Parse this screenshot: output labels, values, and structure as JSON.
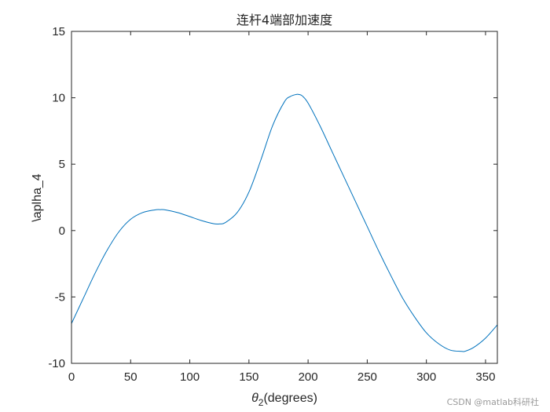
{
  "chart_data": {
    "type": "line",
    "title": "连杆4端部加速度",
    "xlabel_symbol": "θ",
    "xlabel_subscript": "2",
    "xlabel_rest": "(degrees)",
    "ylabel": "\\aplha_4",
    "xlim": [
      0,
      360
    ],
    "ylim": [
      -10,
      15
    ],
    "x_ticks": [
      0,
      50,
      100,
      150,
      200,
      250,
      300,
      350
    ],
    "y_ticks": [
      -10,
      -5,
      0,
      5,
      10,
      15
    ],
    "grid": false,
    "line_color": "#0072BD",
    "series": [
      {
        "x": [
          0,
          10,
          20,
          30,
          40,
          50,
          60,
          70,
          75,
          80,
          90,
          100,
          110,
          120,
          125,
          130,
          140,
          150,
          160,
          170,
          180,
          185,
          190,
          192,
          195,
          200,
          210,
          220,
          230,
          240,
          250,
          260,
          270,
          280,
          290,
          300,
          310,
          320,
          330,
          333,
          340,
          350,
          360
        ],
        "y": [
          -7.0,
          -5.1,
          -3.2,
          -1.5,
          -0.1,
          0.85,
          1.35,
          1.55,
          1.58,
          1.55,
          1.35,
          1.05,
          0.75,
          0.52,
          0.5,
          0.6,
          1.35,
          2.9,
          5.3,
          7.9,
          9.7,
          10.1,
          10.25,
          10.25,
          10.15,
          9.6,
          7.9,
          6.0,
          4.1,
          2.2,
          0.3,
          -1.6,
          -3.4,
          -5.1,
          -6.5,
          -7.7,
          -8.5,
          -9.0,
          -9.1,
          -9.08,
          -8.8,
          -8.1,
          -7.1
        ]
      }
    ]
  },
  "watermark": "CSDN @matlab科研社"
}
